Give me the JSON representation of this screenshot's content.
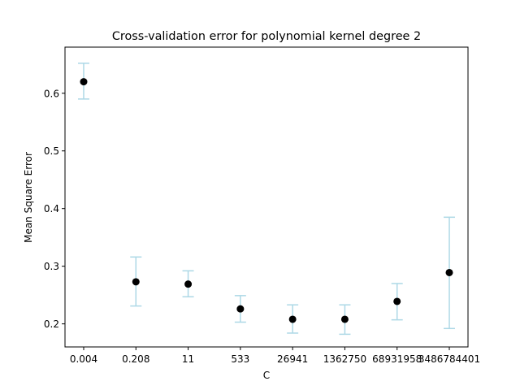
{
  "chart_data": {
    "type": "scatter",
    "title": "Cross-validation error for polynomial kernel degree 2",
    "xlabel": "C",
    "ylabel": "Mean Square Error",
    "categories": [
      "0.004",
      "0.208",
      "11",
      "533",
      "26941",
      "1362750",
      "68931958",
      "3486784401"
    ],
    "values": [
      0.62,
      0.273,
      0.269,
      0.226,
      0.208,
      0.208,
      0.239,
      0.289
    ],
    "error_low": [
      0.59,
      0.231,
      0.247,
      0.203,
      0.184,
      0.182,
      0.207,
      0.192
    ],
    "error_high": [
      0.652,
      0.316,
      0.292,
      0.249,
      0.233,
      0.233,
      0.27,
      0.385
    ],
    "ylim": [
      0.16,
      0.68
    ],
    "yticks": [
      0.2,
      0.3,
      0.4,
      0.5,
      0.6
    ],
    "ytick_labels": [
      "0.2",
      "0.3",
      "0.4",
      "0.5",
      "0.6"
    ],
    "grid": false,
    "colors": {
      "marker": "#000000",
      "errorbar": "#add8e6",
      "axis": "#000000"
    }
  }
}
